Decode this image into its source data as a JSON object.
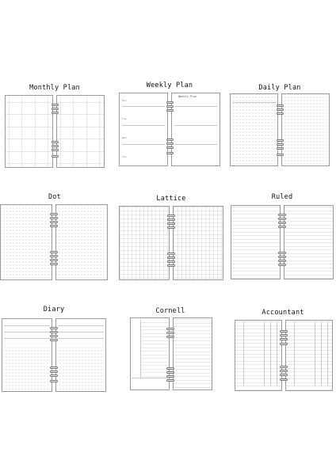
{
  "templates": [
    {
      "label": "Monthly Plan"
    },
    {
      "label": "Weekly Plan"
    },
    {
      "label": "Daily Plan"
    },
    {
      "label": "Dot"
    },
    {
      "label": "Lattice"
    },
    {
      "label": "Ruled"
    },
    {
      "label": "Diary"
    },
    {
      "label": "Cornell"
    },
    {
      "label": "Accountant"
    }
  ],
  "weekly_right_title": "Weekly Plan"
}
